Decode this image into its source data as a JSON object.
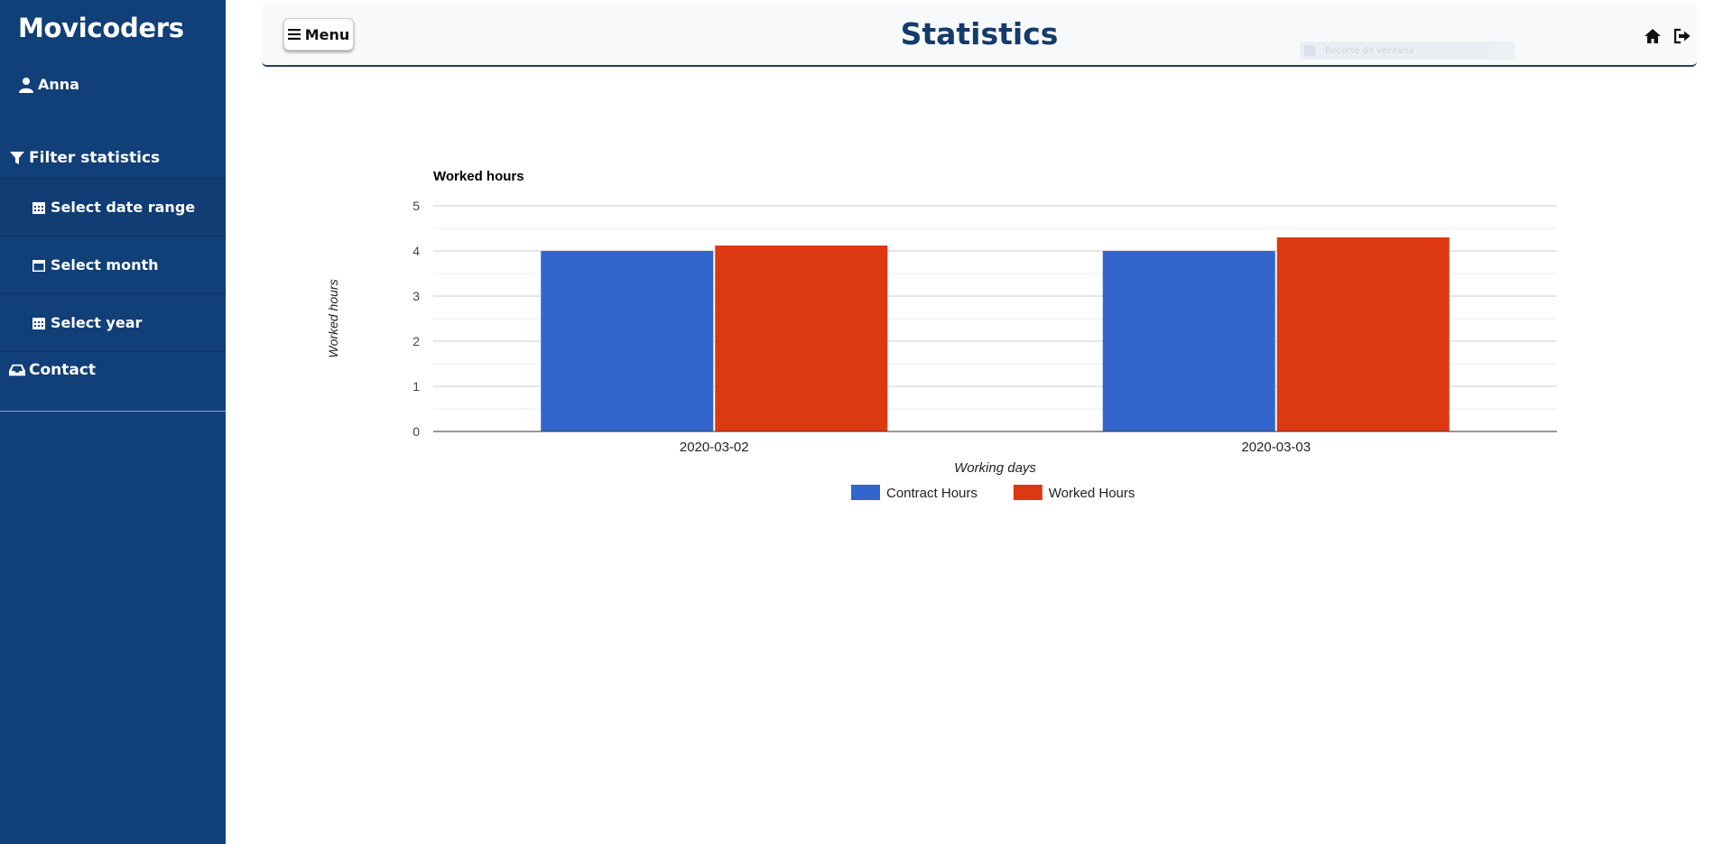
{
  "sidebar": {
    "brand": "Movicoders",
    "user_name": "Anna",
    "filter_heading": "Filter statistics",
    "filter_items": [
      {
        "label": "Select date range",
        "icon": "calendar-grid-icon"
      },
      {
        "label": "Select month",
        "icon": "calendar-icon"
      },
      {
        "label": "Select year",
        "icon": "calendar-grid-icon"
      }
    ],
    "contact_label": "Contact",
    "bg_color": "#113f78"
  },
  "header": {
    "menu_label": "Menu",
    "title": "Statistics",
    "ghost_field_text": "Recorte de ventana",
    "title_color": "#143b6a"
  },
  "chart_data": {
    "type": "bar",
    "title": "Worked hours",
    "xlabel": "Working days",
    "ylabel": "Worked hours",
    "categories": [
      "2020-03-02",
      "2020-03-03"
    ],
    "series": [
      {
        "name": "Contract Hours",
        "values": [
          4,
          4
        ],
        "color": "#3366cc"
      },
      {
        "name": "Worked Hours",
        "values": [
          4.12,
          4.3
        ],
        "color": "#dc3912"
      }
    ],
    "ylim": [
      0,
      5
    ],
    "yticks": [
      "0",
      "1",
      "2",
      "3",
      "4",
      "5"
    ],
    "grid": true,
    "legend_position": "bottom"
  }
}
